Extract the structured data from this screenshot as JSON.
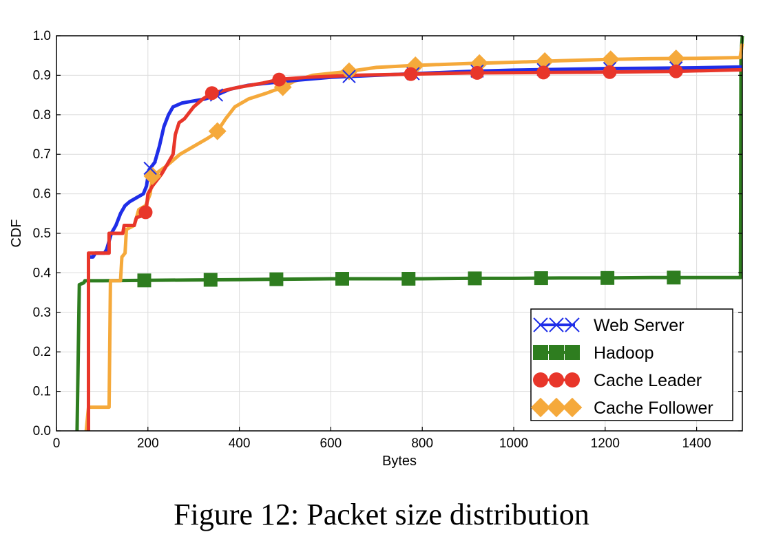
{
  "caption": "Figure 12: Packet size distribution",
  "chart_data": {
    "type": "line",
    "title": "",
    "xlabel": "Bytes",
    "ylabel": "CDF",
    "xlim": [
      0,
      1500
    ],
    "ylim": [
      0,
      1.0
    ],
    "xticks": [
      0,
      200,
      400,
      600,
      800,
      1000,
      1200,
      1400
    ],
    "yticks": [
      0.0,
      0.1,
      0.2,
      0.3,
      0.4,
      0.5,
      0.6,
      0.7,
      0.8,
      0.9,
      1.0
    ],
    "grid": true,
    "legend_position": "bottom-right",
    "series": [
      {
        "name": "Web Server",
        "color": "#1f2ee8",
        "marker": "x",
        "markers_at": [
          205,
          350,
          640,
          780,
          920,
          1065,
          1210,
          1355
        ],
        "points": [
          [
            70,
            0
          ],
          [
            70,
            0.44
          ],
          [
            80,
            0.44
          ],
          [
            85,
            0.45
          ],
          [
            105,
            0.45
          ],
          [
            110,
            0.46
          ],
          [
            120,
            0.5
          ],
          [
            130,
            0.52
          ],
          [
            140,
            0.55
          ],
          [
            150,
            0.57
          ],
          [
            160,
            0.58
          ],
          [
            175,
            0.59
          ],
          [
            190,
            0.6
          ],
          [
            197,
            0.62
          ],
          [
            202,
            0.66
          ],
          [
            215,
            0.68
          ],
          [
            225,
            0.72
          ],
          [
            235,
            0.77
          ],
          [
            245,
            0.8
          ],
          [
            255,
            0.82
          ],
          [
            275,
            0.83
          ],
          [
            300,
            0.835
          ],
          [
            325,
            0.84
          ],
          [
            350,
            0.85
          ],
          [
            380,
            0.865
          ],
          [
            420,
            0.875
          ],
          [
            500,
            0.885
          ],
          [
            600,
            0.895
          ],
          [
            700,
            0.9
          ],
          [
            800,
            0.905
          ],
          [
            900,
            0.91
          ],
          [
            1000,
            0.913
          ],
          [
            1100,
            0.915
          ],
          [
            1200,
            0.917
          ],
          [
            1300,
            0.918
          ],
          [
            1400,
            0.919
          ],
          [
            1500,
            0.921
          ]
        ]
      },
      {
        "name": "Hadoop",
        "color": "#2e7d1f",
        "marker": "square",
        "markers_at": [
          192,
          337,
          481,
          625,
          770,
          915,
          1060,
          1205,
          1350
        ],
        "points": [
          [
            45,
            0
          ],
          [
            50,
            0.37
          ],
          [
            60,
            0.375
          ],
          [
            62,
            0.38
          ],
          [
            100,
            0.38
          ],
          [
            200,
            0.381
          ],
          [
            300,
            0.382
          ],
          [
            400,
            0.383
          ],
          [
            500,
            0.384
          ],
          [
            600,
            0.385
          ],
          [
            700,
            0.385
          ],
          [
            800,
            0.385
          ],
          [
            900,
            0.386
          ],
          [
            1000,
            0.386
          ],
          [
            1100,
            0.387
          ],
          [
            1200,
            0.387
          ],
          [
            1300,
            0.388
          ],
          [
            1400,
            0.388
          ],
          [
            1496,
            0.388
          ],
          [
            1497,
            0.95
          ],
          [
            1500,
            1.0
          ]
        ]
      },
      {
        "name": "Cache Leader",
        "color": "#e8362a",
        "marker": "circle",
        "markers_at": [
          195,
          340,
          487,
          775,
          920,
          1065,
          1210,
          1355
        ],
        "points": [
          [
            70,
            0
          ],
          [
            70,
            0.45
          ],
          [
            115,
            0.45
          ],
          [
            115,
            0.5
          ],
          [
            145,
            0.5
          ],
          [
            148,
            0.52
          ],
          [
            170,
            0.52
          ],
          [
            175,
            0.54
          ],
          [
            190,
            0.545
          ],
          [
            196,
            0.555
          ],
          [
            200,
            0.6
          ],
          [
            210,
            0.62
          ],
          [
            230,
            0.65
          ],
          [
            255,
            0.7
          ],
          [
            260,
            0.75
          ],
          [
            268,
            0.78
          ],
          [
            280,
            0.79
          ],
          [
            300,
            0.82
          ],
          [
            320,
            0.84
          ],
          [
            340,
            0.855
          ],
          [
            360,
            0.86
          ],
          [
            400,
            0.87
          ],
          [
            450,
            0.88
          ],
          [
            490,
            0.89
          ],
          [
            550,
            0.895
          ],
          [
            650,
            0.9
          ],
          [
            775,
            0.903
          ],
          [
            900,
            0.906
          ],
          [
            1050,
            0.907
          ],
          [
            1200,
            0.908
          ],
          [
            1350,
            0.91
          ],
          [
            1500,
            0.914
          ]
        ]
      },
      {
        "name": "Cache Follower",
        "color": "#f5a93b",
        "marker": "diamond",
        "markers_at": [
          210,
          352,
          495,
          640,
          785,
          925,
          1068,
          1212,
          1355
        ],
        "points": [
          [
            65,
            0
          ],
          [
            70,
            0.06
          ],
          [
            115,
            0.06
          ],
          [
            118,
            0.38
          ],
          [
            140,
            0.38
          ],
          [
            143,
            0.44
          ],
          [
            150,
            0.45
          ],
          [
            153,
            0.51
          ],
          [
            170,
            0.52
          ],
          [
            180,
            0.56
          ],
          [
            195,
            0.57
          ],
          [
            205,
            0.6
          ],
          [
            210,
            0.645
          ],
          [
            240,
            0.67
          ],
          [
            270,
            0.7
          ],
          [
            300,
            0.72
          ],
          [
            330,
            0.74
          ],
          [
            350,
            0.755
          ],
          [
            370,
            0.79
          ],
          [
            390,
            0.82
          ],
          [
            420,
            0.84
          ],
          [
            460,
            0.855
          ],
          [
            495,
            0.87
          ],
          [
            520,
            0.885
          ],
          [
            560,
            0.9
          ],
          [
            640,
            0.91
          ],
          [
            700,
            0.92
          ],
          [
            785,
            0.925
          ],
          [
            900,
            0.93
          ],
          [
            1000,
            0.933
          ],
          [
            1100,
            0.937
          ],
          [
            1200,
            0.94
          ],
          [
            1300,
            0.942
          ],
          [
            1400,
            0.943
          ],
          [
            1495,
            0.945
          ],
          [
            1500,
            0.98
          ]
        ]
      }
    ]
  }
}
